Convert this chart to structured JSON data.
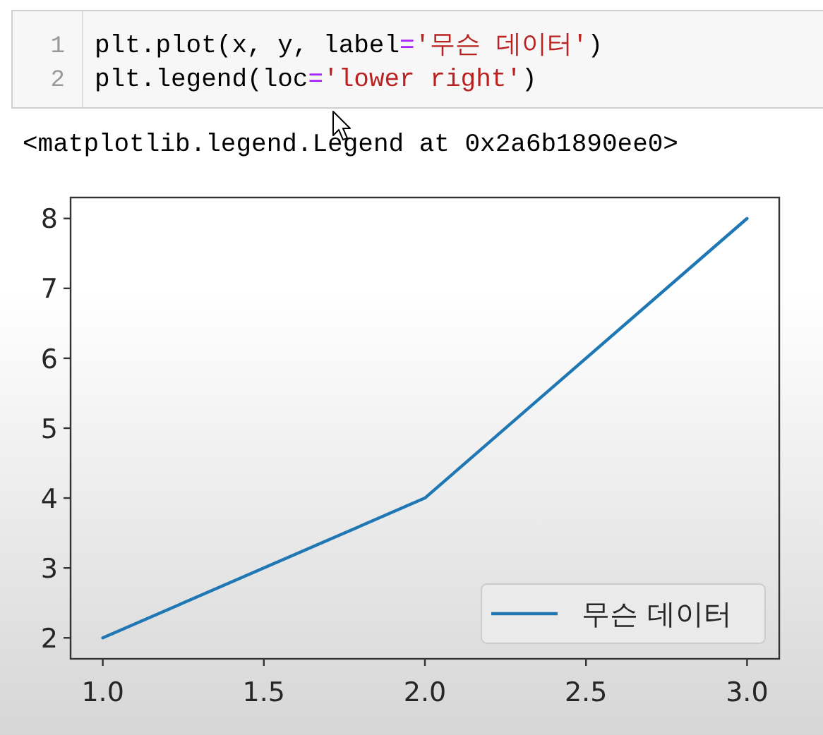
{
  "chart_data": {
    "type": "line",
    "x": [
      1,
      2,
      3
    ],
    "series": [
      {
        "name": "무슨 데이터",
        "color": "#1f77b4",
        "values": [
          2,
          4,
          8
        ]
      }
    ],
    "xlim": [
      0.9,
      3.1
    ],
    "ylim": [
      1.7,
      8.3
    ],
    "xticks": [
      {
        "value": 1,
        "label": "1.0"
      },
      {
        "value": 1.5,
        "label": "1.5"
      },
      {
        "value": 2,
        "label": "2.0"
      },
      {
        "value": 2.5,
        "label": "2.5"
      },
      {
        "value": 3,
        "label": "3.0"
      }
    ],
    "yticks": [
      2,
      3,
      4,
      5,
      6,
      7,
      8
    ],
    "legend": "bottom right",
    "annotations": [
      "1",
      "plt.plot(x, y, label='무슨 데이터')",
      "2",
      "plt.legend(loc='lower right')",
      "<matplotlib.legend.Legend at 0x2a6b1890ee0>"
    ]
  }
}
